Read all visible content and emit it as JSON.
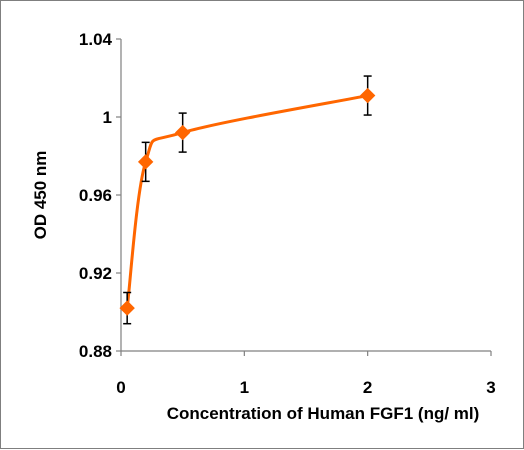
{
  "chart_data": {
    "type": "scatter",
    "title": "",
    "xlabel": "Concentration of Human FGF1 (ng/ ml)",
    "ylabel": "OD 450 nm",
    "xlim": [
      0,
      3
    ],
    "ylim": [
      0.88,
      1.04
    ],
    "x_ticks": [
      "0",
      "1",
      "2",
      "3"
    ],
    "y_ticks": [
      "0.88",
      "0.92",
      "0.96",
      "1",
      "1.04"
    ],
    "x_tick_values": [
      0,
      1,
      2,
      3
    ],
    "y_tick_values": [
      0.88,
      0.92,
      0.96,
      1.0,
      1.04
    ],
    "grid": false,
    "legend": "none",
    "series": [
      {
        "x": [
          0.05,
          0.2,
          0.5,
          2
        ],
        "y": [
          0.902,
          0.977,
          0.992,
          1.011
        ],
        "error": [
          0.008,
          0.01,
          0.01,
          0.01
        ],
        "color": "#FF6600",
        "marker": "diamond",
        "line": "smooth"
      }
    ]
  }
}
